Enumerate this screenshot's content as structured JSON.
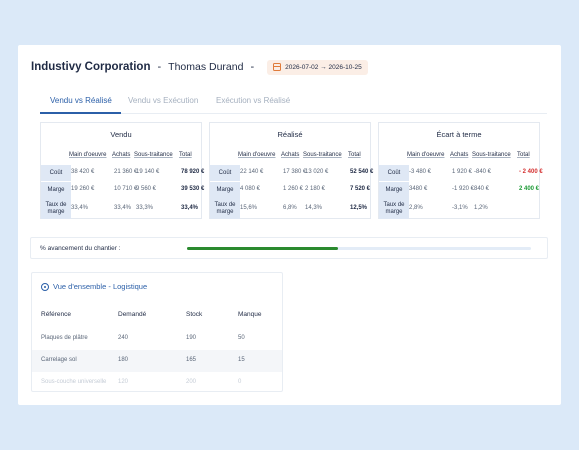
{
  "header": {
    "company": "Industivy Corporation",
    "separator": "-",
    "person": "Thomas Durand",
    "date_range": "2026-07-02 → 2026-10-25",
    "date_icon": "calendar-icon",
    "accent_color": "#e07b3a"
  },
  "tabs": [
    {
      "label": "Vendu vs Réalisé",
      "active": true
    },
    {
      "label": "Vendu vs Exécution",
      "active": false
    },
    {
      "label": "Exécution vs Réalisé",
      "active": false
    }
  ],
  "columns": [
    "Main d'oeuvre",
    "Achats",
    "Sous-traitance",
    "Total"
  ],
  "row_labels": [
    "Coût",
    "Marge",
    "Taux de marge"
  ],
  "blocks": [
    {
      "title": "Vendu",
      "rows": [
        [
          "38 420 €",
          "21 360 €",
          "19 140 €",
          "78 920 €"
        ],
        [
          "19 260 €",
          "10 710 €",
          "9 560 €",
          "39 530 €"
        ],
        [
          "33,4%",
          "33,4%",
          "33,3%",
          "33,4%"
        ]
      ]
    },
    {
      "title": "Réalisé",
      "rows": [
        [
          "22 140 €",
          "17 380 €",
          "13 020 €",
          "52 540 €"
        ],
        [
          "4 080 €",
          "1 260 €",
          "2 180 €",
          "7 520 €"
        ],
        [
          "15,6%",
          "6,8%",
          "14,3%",
          "12,5%"
        ]
      ]
    },
    {
      "title": "Écart à terme",
      "rows": [
        [
          "-3 480 €",
          "1 920 €",
          "-840 €",
          "- 2 400 €"
        ],
        [
          "3480 €",
          "-1 920 €",
          "840 €",
          "2 400 €"
        ],
        [
          "2,8%",
          "-3,1%",
          "1,2%",
          ""
        ]
      ]
    }
  ],
  "progress": {
    "label": "% avancement du chantier :",
    "value": 0.44,
    "fill_color": "#2a8a2e"
  },
  "logistics": {
    "title": "Vue d'ensemble - Logistique",
    "icon": "eye-icon",
    "headers": [
      "Référence",
      "Demandé",
      "Stock",
      "Manque"
    ],
    "rows": [
      [
        "Plaques de plâtre",
        "240",
        "190",
        "50"
      ],
      [
        "Carrelage sol",
        "180",
        "165",
        "15"
      ],
      [
        "Sous-couche universelle",
        "120",
        "200",
        "0"
      ]
    ]
  }
}
